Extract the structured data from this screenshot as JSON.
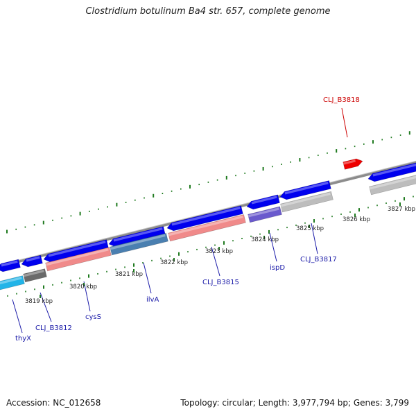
{
  "title": "Clostridium botulinum Ba4 str. 657, complete genome",
  "footer": {
    "accession": "Accession: NC_012658",
    "topology": "Topology: circular; Length: 3,977,794 bp; Genes: 3,799"
  },
  "ticks": [
    "3819 kbp",
    "3820 kbp",
    "3821 kbp",
    "3822 kbp",
    "3823 kbp",
    "3824 kbp",
    "3825 kbp",
    "3826 kbp",
    "3827 kbp"
  ],
  "gene_labels": [
    "thyX",
    "CLJ_B3812",
    "cysS",
    "ilvA",
    "CLJ_B3815",
    "ispD",
    "CLJ_B3817",
    "CLJ_B3818"
  ],
  "colors": {
    "forward_gene": "#0000ee",
    "cds_pink": "#f08a8a",
    "cds_steel": "#4a7fb0",
    "cds_purple": "#6a5acd",
    "cds_grey": "#bdbdbd",
    "cds_cyan": "#22b4e8",
    "cds_darkgrey": "#6a6a6a",
    "highlight_red": "#ee0000",
    "backbone": "#8c8c8c",
    "tick_green": "#1f7a1f"
  }
}
